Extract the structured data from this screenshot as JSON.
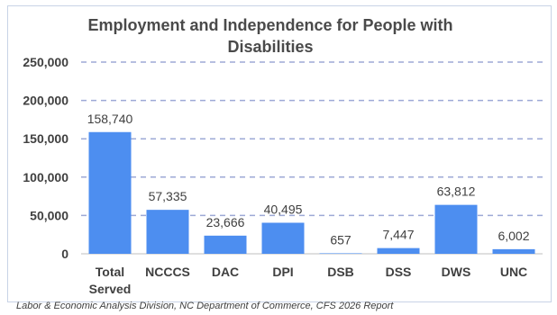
{
  "chart_data": {
    "type": "bar",
    "title": "Employment and Independence for People with Disabilities",
    "categories": [
      "Total Served",
      "NCCCS",
      "DAC",
      "DPI",
      "DSB",
      "DSS",
      "DWS",
      "UNC"
    ],
    "category_lines": [
      [
        "Total",
        "Served"
      ],
      [
        "NCCCS"
      ],
      [
        "DAC"
      ],
      [
        "DPI"
      ],
      [
        "DSB"
      ],
      [
        "DSS"
      ],
      [
        "DWS"
      ],
      [
        "UNC"
      ]
    ],
    "values": [
      158740,
      57335,
      23666,
      40495,
      657,
      7447,
      63812,
      6002
    ],
    "value_labels": [
      "158,740",
      "57,335",
      "23,666",
      "40,495",
      "657",
      "7,447",
      "63,812",
      "6,002"
    ],
    "ylim": [
      0,
      250000
    ],
    "yticks": [
      0,
      50000,
      100000,
      150000,
      200000,
      250000
    ],
    "ytick_labels": [
      "0",
      "50,000",
      "100,000",
      "150,000",
      "200,000",
      "250,000"
    ],
    "grid": true,
    "legend": "none",
    "bar_color": "#4d8ef0"
  },
  "source_note": "Labor & Economic Analysis Division, NC Department of Commerce, CFS 2026 Report"
}
